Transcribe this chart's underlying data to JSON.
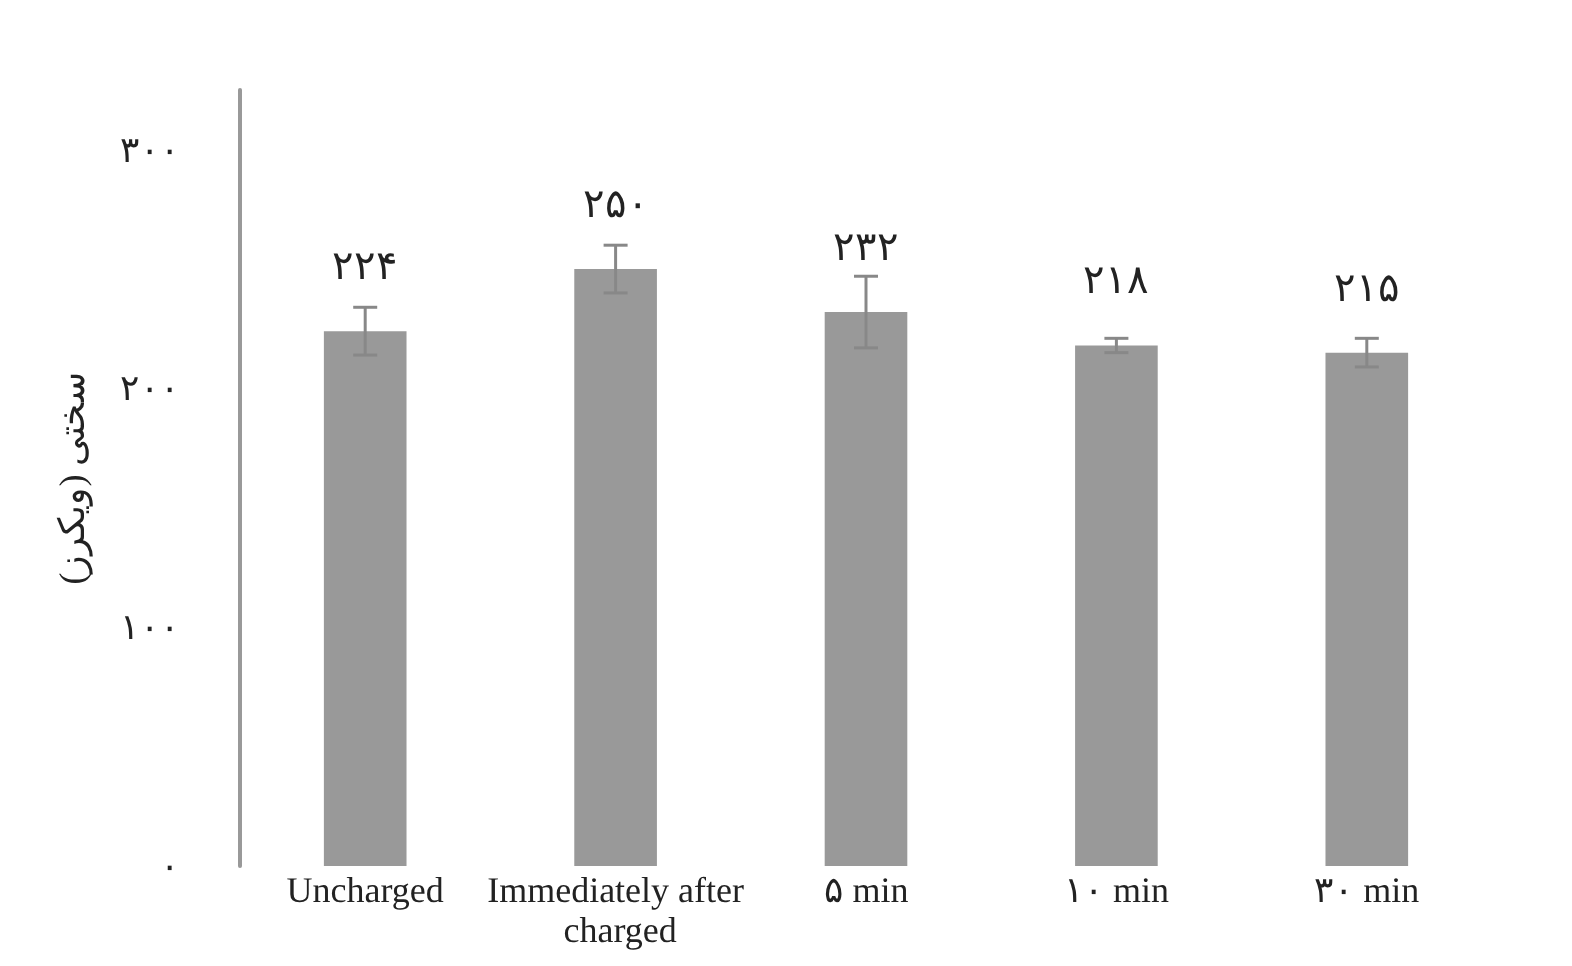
{
  "chart_data": {
    "type": "bar",
    "ylabel": "سختی (ویکرز)",
    "categories": [
      "Uncharged",
      "Immediately after charged",
      "۵ min",
      "۱۰ min",
      "۳۰ min"
    ],
    "values": [
      224,
      250,
      232,
      218,
      215
    ],
    "value_labels": [
      "۲۲۴",
      "۲۵۰",
      "۲۳۲",
      "۲۱۸",
      "۲۱۵"
    ],
    "errors": [
      10,
      10,
      15,
      3,
      6
    ],
    "color": "#999999",
    "ylim": [
      0,
      325
    ],
    "yticks": [
      {
        "value": 0,
        "label": "۰"
      },
      {
        "value": 100,
        "label": "۱۰۰"
      },
      {
        "value": 200,
        "label": "۲۰۰"
      },
      {
        "value": 300,
        "label": "۳۰۰"
      }
    ],
    "grid": false
  }
}
